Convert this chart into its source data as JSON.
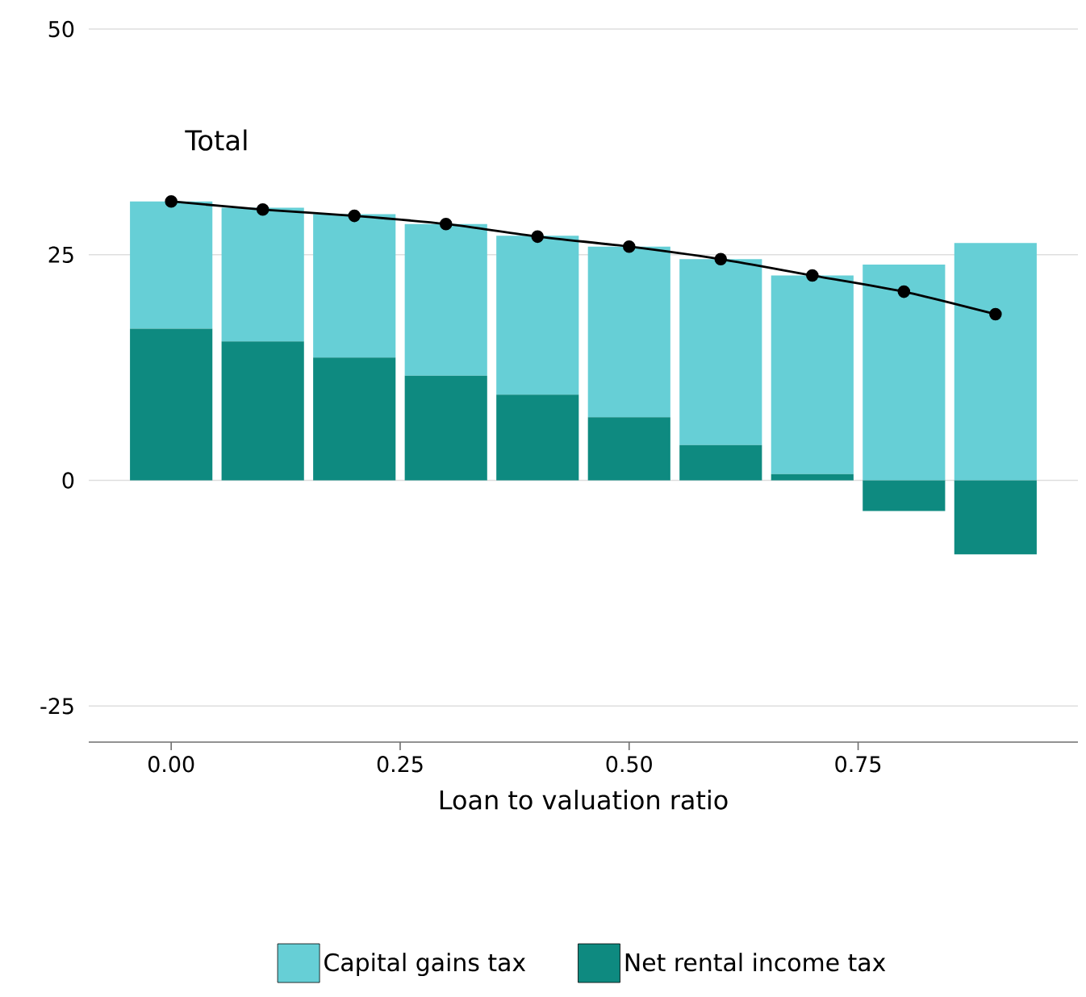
{
  "chart_data": {
    "type": "bar",
    "stacked": true,
    "xlabel": "Loan to valuation ratio",
    "x": [
      0,
      0.1,
      0.2,
      0.3,
      0.4,
      0.5,
      0.6,
      0.7,
      0.8,
      0.9
    ],
    "xlim": [
      -0.09,
      0.99
    ],
    "ylim": [
      -29,
      50
    ],
    "xticks": [
      {
        "value": 0,
        "label": "0.00"
      },
      {
        "value": 0.25,
        "label": "0.25"
      },
      {
        "value": 0.5,
        "label": "0.50"
      },
      {
        "value": 0.75,
        "label": "0.75"
      }
    ],
    "yticks": [
      -25,
      0,
      25,
      50
    ],
    "grid": "y",
    "legend": "bottom",
    "marker": "circle",
    "series": [
      {
        "name": "Net rental income tax",
        "type": "bar",
        "color": "#0e8a80",
        "values": [
          16.8,
          15.4,
          13.6,
          11.6,
          9.5,
          7.0,
          3.9,
          0.7,
          -3.4,
          -8.2
        ]
      },
      {
        "name": "Capital gains tax",
        "type": "bar",
        "color": "#66cfd6",
        "values": [
          14.1,
          14.8,
          15.9,
          16.8,
          17.6,
          18.9,
          20.6,
          22.0,
          23.9,
          26.3
        ]
      },
      {
        "name": "Total",
        "type": "line",
        "color": "#000000",
        "values": [
          30.9,
          30.0,
          29.3,
          28.4,
          27.0,
          25.9,
          24.5,
          22.7,
          20.9,
          18.4
        ]
      }
    ]
  }
}
